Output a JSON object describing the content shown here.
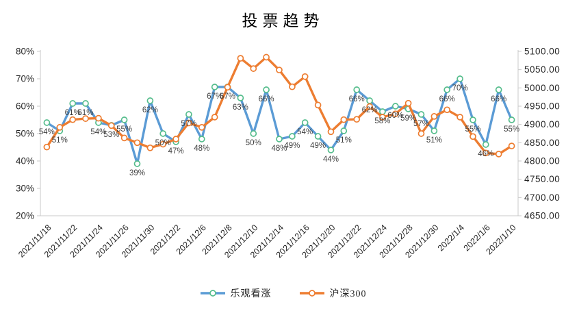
{
  "title": "投票趋势",
  "colors": {
    "bullish_line": "#5B9BD5",
    "bullish_marker_ring": "#55BD8C",
    "csi300_line": "#ED7D31",
    "csi300_marker_ring": "#ED7D31",
    "axis_line": "#C9C9C9",
    "tick_label": "#262626",
    "data_label": "#404040",
    "marker_fill": "#FFFFFF"
  },
  "legend": [
    {
      "id": "bullish",
      "label": "乐观看涨"
    },
    {
      "id": "csi300",
      "label": "沪深300"
    }
  ],
  "chart_data": {
    "type": "line",
    "title": "投票趋势",
    "num_points": 37,
    "x_tick_labels": [
      "2021/11/18",
      "2021/11/22",
      "2021/11/24",
      "2021/11/26",
      "2021/11/30",
      "2021/12/2",
      "2021/12/6",
      "2021/12/8",
      "2021/12/10",
      "2021/12/14",
      "2021/12/16",
      "2021/12/20",
      "2021/12/22",
      "2021/12/24",
      "2021/12/28",
      "2021/12/30",
      "2022/1/4",
      "2022/1/6",
      "2022/1/10"
    ],
    "x_tick_label_every": 2,
    "left_axis": {
      "min": 20,
      "max": 80,
      "ticks": [
        "80%",
        "70%",
        "60%",
        "50%",
        "40%",
        "30%",
        "20%"
      ]
    },
    "right_axis": {
      "min": 4650,
      "max": 5100,
      "ticks": [
        "5100.00",
        "5050.00",
        "5000.00",
        "4950.00",
        "4900.00",
        "4850.00",
        "4800.00",
        "4750.00",
        "4700.00",
        "4650.00"
      ]
    },
    "grid": false,
    "legend_position": "bottom",
    "series": [
      {
        "id": "bullish",
        "name": "乐观看涨",
        "axis": "left",
        "unit": "%",
        "labels_visible": true,
        "values": [
          54,
          51,
          61,
          61,
          54,
          53,
          55,
          39,
          62,
          50,
          47,
          57,
          48,
          67,
          67,
          63,
          50,
          66,
          48,
          49,
          54,
          49,
          44,
          51,
          66,
          62,
          58,
          60,
          59,
          57,
          51,
          66,
          70,
          55,
          46,
          66,
          55
        ]
      },
      {
        "id": "csi300",
        "name": "沪深300",
        "axis": "right",
        "unit": "",
        "labels_visible": false,
        "values": [
          4838,
          4892,
          4913,
          4916,
          4917,
          4897,
          4863,
          4850,
          4836,
          4846,
          4860,
          4904,
          4892,
          4920,
          5002,
          5081,
          5053,
          5084,
          5049,
          5003,
          5031,
          4953,
          4880,
          4913,
          4914,
          4949,
          4920,
          4929,
          4958,
          4875,
          4922,
          4940,
          4920,
          4867,
          4822,
          4819,
          4841
        ]
      }
    ]
  }
}
